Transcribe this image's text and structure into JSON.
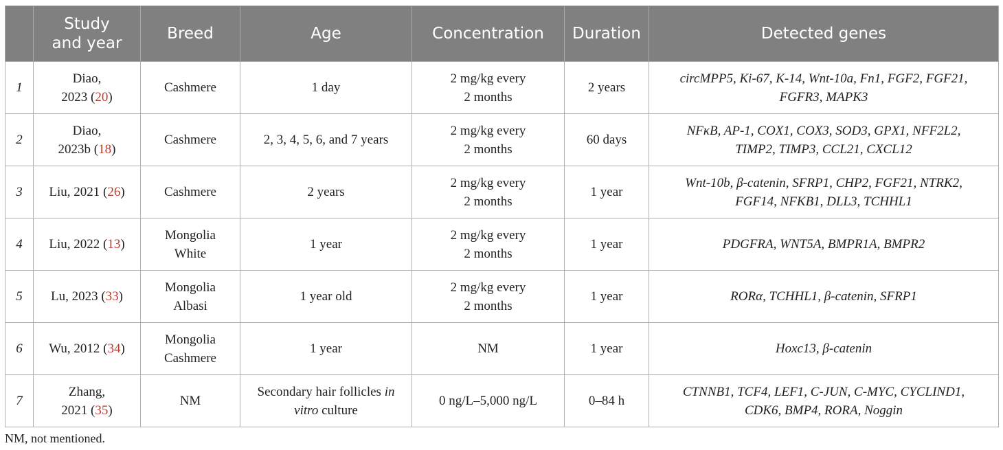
{
  "header": {
    "col0": "",
    "study": [
      "Study",
      "and year"
    ],
    "breed": "Breed",
    "age": "Age",
    "concentration": "Concentration",
    "duration": "Duration",
    "genes": "Detected genes"
  },
  "rows": [
    {
      "num": "1",
      "author": "Diao,",
      "year": "2023 (",
      "ref": "20",
      "close": ")",
      "breed": [
        "Cashmere"
      ],
      "age": "1 day",
      "conc": [
        "2 mg/kg every",
        "2 months"
      ],
      "duration": "2 years",
      "genes": [
        "circMPP5, Ki-67, K-14, Wnt-10a, Fn1, FGF2, FGF21,",
        "FGFR3, MAPK3"
      ]
    },
    {
      "num": "2",
      "author": "Diao,",
      "year": "2023b (",
      "ref": "18",
      "close": ")",
      "breed": [
        "Cashmere"
      ],
      "age": "2, 3, 4, 5, 6, and 7 years",
      "conc": [
        "2 mg/kg every",
        "2 months"
      ],
      "duration": "60 days",
      "genes": [
        "NFκB, AP-1, COX1, COX3, SOD3, GPX1, NFF2L2,",
        "TIMP2, TIMP3, CCL21, CXCL12"
      ]
    },
    {
      "num": "3",
      "author": "",
      "year": "Liu, 2021 (",
      "ref": "26",
      "close": ")",
      "breed": [
        "Cashmere"
      ],
      "age": "2 years",
      "conc": [
        "2 mg/kg every",
        "2 months"
      ],
      "duration": "1 year",
      "genes": [
        "Wnt-10b, β-catenin, SFRP1, CHP2, FGF21, NTRK2,",
        "FGF14, NFKB1, DLL3, TCHHL1"
      ]
    },
    {
      "num": "4",
      "author": "",
      "year": "Liu, 2022 (",
      "ref": "13",
      "close": ")",
      "breed": [
        "Mongolia",
        "White"
      ],
      "age": "1 year",
      "conc": [
        "2 mg/kg every",
        "2 months"
      ],
      "duration": "1 year",
      "genes": [
        "PDGFRA, WNT5A, BMPR1A, BMPR2"
      ]
    },
    {
      "num": "5",
      "author": "",
      "year": "Lu, 2023 (",
      "ref": "33",
      "close": ")",
      "breed": [
        "Mongolia",
        "Albasi"
      ],
      "age": "1 year old",
      "conc": [
        "2 mg/kg every",
        "2 months"
      ],
      "duration": "1 year",
      "genes": [
        "RORα, TCHHL1, β-catenin, SFRP1"
      ]
    },
    {
      "num": "6",
      "author": "",
      "year": "Wu, 2012 (",
      "ref": "34",
      "close": ")",
      "breed": [
        "Mongolia",
        "Cashmere"
      ],
      "age": "1 year",
      "conc": [
        "NM"
      ],
      "duration": "1 year",
      "genes": [
        "Hoxc13, β-catenin"
      ]
    },
    {
      "num": "7",
      "author": "Zhang,",
      "year": "2021 (",
      "ref": "35",
      "close": ")",
      "breed": [
        "NM"
      ],
      "age_parts": [
        "Secondary hair follicles ",
        "in",
        "vitro",
        " culture"
      ],
      "conc": [
        "0 ng/L–5,000 ng/L"
      ],
      "duration": "0–84 h",
      "genes": [
        "CTNNB1, TCF4, LEF1, C-JUN, C-MYC, CYCLIND1,",
        "CDK6, BMP4, RORA, Noggin"
      ]
    }
  ],
  "footnote": "NM, not mentioned."
}
